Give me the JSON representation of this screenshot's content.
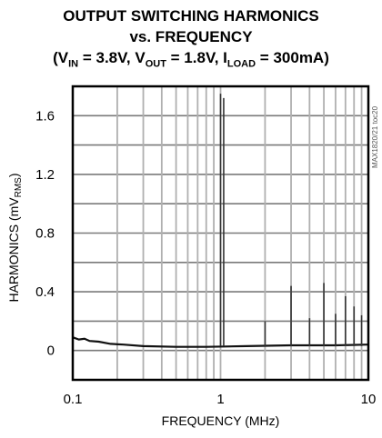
{
  "chart_data": {
    "type": "line",
    "title": "OUTPUT SWITCHING HARMONICS",
    "subtitle": "vs. FREQUENCY",
    "conditions": {
      "open": "(V",
      "vin_sub": "IN",
      "vin_val": " = 3.8V, V",
      "vout_sub": "OUT",
      "vout_val": " = 1.8V, I",
      "iload_sub": "LOAD",
      "iload_val": " = 300mA)"
    },
    "xlabel": "FREQUENCY (MHz)",
    "ylabel": {
      "main": "HARMONICS (mV",
      "sub": "RMS",
      "close": ")"
    },
    "xscale": "log",
    "xlim": [
      0.1,
      10
    ],
    "ylim": [
      -0.2,
      1.8
    ],
    "xticks": [
      {
        "value": 0.1,
        "label": "0.1"
      },
      {
        "value": 1,
        "label": "1"
      },
      {
        "value": 10,
        "label": "10"
      }
    ],
    "yticks": [
      {
        "value": 1.6,
        "label": "1.6"
      },
      {
        "value": 1.2,
        "label": "1.2"
      },
      {
        "value": 0.8,
        "label": "0.8"
      },
      {
        "value": 0.4,
        "label": "0.4"
      },
      {
        "value": 0,
        "label": "0"
      }
    ],
    "grid": true,
    "side_note": "MAX1820/21 toc20",
    "series": [
      {
        "noise_floor": [
          [
            0.1,
            0.09
          ],
          [
            0.11,
            0.075
          ],
          [
            0.12,
            0.08
          ],
          [
            0.13,
            0.065
          ],
          [
            0.15,
            0.06
          ],
          [
            0.18,
            0.045
          ],
          [
            0.22,
            0.04
          ],
          [
            0.3,
            0.03
          ],
          [
            0.5,
            0.025
          ],
          [
            0.8,
            0.025
          ],
          [
            1.5,
            0.03
          ],
          [
            3,
            0.035
          ],
          [
            6,
            0.035
          ],
          [
            10,
            0.04
          ]
        ],
        "peaks": [
          [
            1.0,
            1.75
          ],
          [
            1.05,
            1.72
          ],
          [
            2.0,
            0.2
          ],
          [
            3.0,
            0.44
          ],
          [
            4.0,
            0.22
          ],
          [
            5.0,
            0.46
          ],
          [
            6.0,
            0.25
          ],
          [
            7.0,
            0.37
          ],
          [
            8.0,
            0.3
          ],
          [
            9.0,
            0.24
          ]
        ]
      }
    ]
  }
}
